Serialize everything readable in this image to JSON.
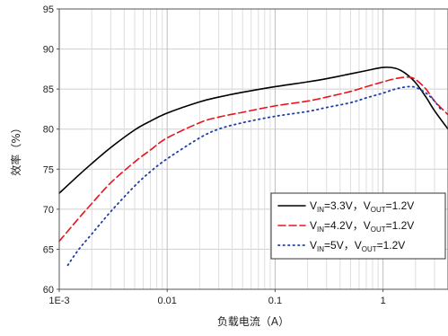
{
  "chart_data": {
    "type": "line",
    "xlabel": "负载电流（A）",
    "ylabel": "效率（%）",
    "x_scale": "log",
    "xlim": [
      0.001,
      4
    ],
    "ylim": [
      60,
      95
    ],
    "x_ticks": [
      {
        "value": 0.001,
        "label": "1E-3"
      },
      {
        "value": 0.01,
        "label": "0.01"
      },
      {
        "value": 0.1,
        "label": "0.1"
      },
      {
        "value": 1,
        "label": "1"
      }
    ],
    "y_ticks": [
      60,
      65,
      70,
      75,
      80,
      85,
      90,
      95
    ],
    "grid": true,
    "legend_position": "bottom-right",
    "series": [
      {
        "name": "VIN=3.3V，VOUT=1.2V",
        "name_parts": {
          "v1": "V",
          "sub1": "IN",
          "mid": "=3.3V，V",
          "sub2": "OUT",
          "end": "=1.2V"
        },
        "color": "#000000",
        "dash": "solid",
        "x": [
          0.001,
          0.0015,
          0.002,
          0.003,
          0.005,
          0.007,
          0.01,
          0.02,
          0.03,
          0.05,
          0.1,
          0.2,
          0.3,
          0.5,
          0.7,
          1.0,
          1.3,
          1.6,
          2.0,
          2.5,
          3.0,
          4.0
        ],
        "y": [
          72.0,
          74.2,
          75.7,
          77.7,
          79.9,
          81.0,
          82.0,
          83.4,
          84.0,
          84.6,
          85.3,
          85.9,
          86.3,
          86.9,
          87.3,
          87.7,
          87.6,
          87.0,
          85.8,
          84.0,
          82.3,
          80.0
        ]
      },
      {
        "name": "VIN=4.2V，VOUT=1.2V",
        "name_parts": {
          "v1": "V",
          "sub1": "IN",
          "mid": "=4.2V，V",
          "sub2": "OUT",
          "end": "=1.2V"
        },
        "color": "#e8141b",
        "dash": "dashed",
        "x": [
          0.001,
          0.0015,
          0.002,
          0.003,
          0.005,
          0.007,
          0.01,
          0.02,
          0.03,
          0.05,
          0.1,
          0.2,
          0.3,
          0.5,
          0.7,
          1.0,
          1.3,
          1.7,
          2.0,
          2.5,
          3.0,
          4.0
        ],
        "y": [
          66.0,
          68.8,
          70.7,
          73.3,
          75.9,
          77.4,
          78.9,
          80.8,
          81.5,
          82.1,
          82.9,
          83.5,
          84.0,
          84.7,
          85.3,
          85.9,
          86.3,
          86.5,
          86.2,
          85.0,
          83.5,
          81.8
        ]
      },
      {
        "name": "VIN=5V，VOUT=1.2V",
        "name_parts": {
          "v1": "V",
          "sub1": "IN",
          "mid": "=5V，V",
          "sub2": "OUT",
          "end": "=1.2V"
        },
        "color": "#1f3fa8",
        "dash": "dotted",
        "x": [
          0.0012,
          0.0015,
          0.002,
          0.003,
          0.005,
          0.007,
          0.01,
          0.02,
          0.03,
          0.05,
          0.1,
          0.2,
          0.3,
          0.5,
          0.7,
          1.0,
          1.3,
          1.7,
          2.0,
          2.5,
          3.0,
          3.5
        ],
        "y": [
          63.0,
          64.9,
          66.9,
          69.7,
          72.9,
          74.7,
          76.3,
          78.9,
          80.0,
          80.8,
          81.6,
          82.2,
          82.7,
          83.3,
          83.9,
          84.5,
          85.0,
          85.3,
          85.2,
          84.5,
          83.5,
          82.3
        ]
      }
    ]
  }
}
